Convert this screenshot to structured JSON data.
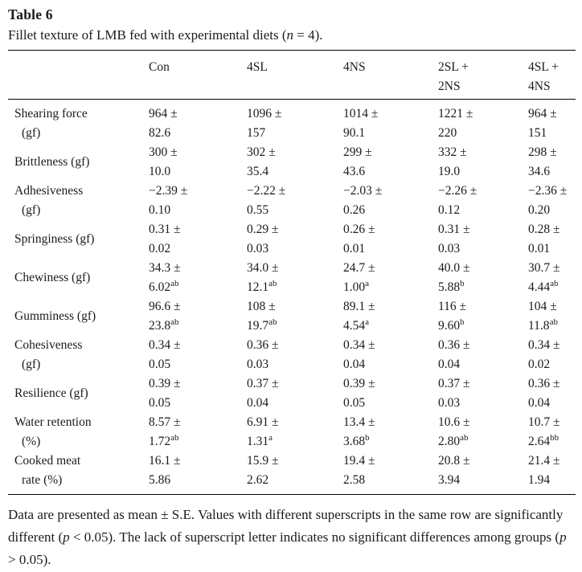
{
  "title": "Table 6",
  "caption": {
    "prefix": "Fillet texture of LMB fed with experimental diets (",
    "n": "n",
    "suffix": " = 4)."
  },
  "table": {
    "columns": [
      {
        "line1": "",
        "line2": ""
      },
      {
        "line1": "Con",
        "line2": ""
      },
      {
        "line1": "4SL",
        "line2": ""
      },
      {
        "line1": "4NS",
        "line2": ""
      },
      {
        "line1": "2SL +",
        "line2": "2NS"
      },
      {
        "line1": "4SL +",
        "line2": "4NS"
      }
    ],
    "rows": [
      {
        "label1": "Shearing force",
        "label2": "(gf)",
        "values": [
          {
            "mean": "964 ±",
            "se": "82.6",
            "sup": ""
          },
          {
            "mean": "1096 ±",
            "se": "157",
            "sup": ""
          },
          {
            "mean": "1014 ±",
            "se": "90.1",
            "sup": ""
          },
          {
            "mean": "1221 ±",
            "se": "220",
            "sup": ""
          },
          {
            "mean": "964 ±",
            "se": "151",
            "sup": ""
          }
        ]
      },
      {
        "label1": "Brittleness (gf)",
        "label2": "",
        "values": [
          {
            "mean": "300 ±",
            "se": "10.0",
            "sup": ""
          },
          {
            "mean": "302 ±",
            "se": "35.4",
            "sup": ""
          },
          {
            "mean": "299 ±",
            "se": "43.6",
            "sup": ""
          },
          {
            "mean": "332 ±",
            "se": "19.0",
            "sup": ""
          },
          {
            "mean": "298 ±",
            "se": "34.6",
            "sup": ""
          }
        ]
      },
      {
        "label1": "Adhesiveness",
        "label2": "(gf)",
        "values": [
          {
            "mean": "−2.39 ±",
            "se": "0.10",
            "sup": ""
          },
          {
            "mean": "−2.22 ±",
            "se": "0.55",
            "sup": ""
          },
          {
            "mean": "−2.03 ±",
            "se": "0.26",
            "sup": ""
          },
          {
            "mean": "−2.26 ±",
            "se": "0.12",
            "sup": ""
          },
          {
            "mean": "−2.36 ±",
            "se": "0.20",
            "sup": ""
          }
        ]
      },
      {
        "label1": "Springiness (gf)",
        "label2": "",
        "values": [
          {
            "mean": "0.31 ±",
            "se": "0.02",
            "sup": ""
          },
          {
            "mean": "0.29 ±",
            "se": "0.03",
            "sup": ""
          },
          {
            "mean": "0.26 ±",
            "se": "0.01",
            "sup": ""
          },
          {
            "mean": "0.31 ±",
            "se": "0.03",
            "sup": ""
          },
          {
            "mean": "0.28 ±",
            "se": "0.01",
            "sup": ""
          }
        ]
      },
      {
        "label1": "Chewiness (gf)",
        "label2": "",
        "values": [
          {
            "mean": "34.3 ±",
            "se": "6.02",
            "sup": "ab"
          },
          {
            "mean": "34.0 ±",
            "se": "12.1",
            "sup": "ab"
          },
          {
            "mean": "24.7 ±",
            "se": "1.00",
            "sup": "a"
          },
          {
            "mean": "40.0 ±",
            "se": "5.88",
            "sup": "b"
          },
          {
            "mean": "30.7 ±",
            "se": "4.44",
            "sup": "ab"
          }
        ]
      },
      {
        "label1": "Gumminess (gf)",
        "label2": "",
        "values": [
          {
            "mean": "96.6 ±",
            "se": "23.8",
            "sup": "ab"
          },
          {
            "mean": "108 ±",
            "se": "19.7",
            "sup": "ab"
          },
          {
            "mean": "89.1 ±",
            "se": "4.54",
            "sup": "a"
          },
          {
            "mean": "116 ±",
            "se": "9.60",
            "sup": "b"
          },
          {
            "mean": "104 ±",
            "se": "11.8",
            "sup": "ab"
          }
        ]
      },
      {
        "label1": "Cohesiveness",
        "label2": "(gf)",
        "values": [
          {
            "mean": "0.34 ±",
            "se": "0.05",
            "sup": ""
          },
          {
            "mean": "0.36 ±",
            "se": "0.03",
            "sup": ""
          },
          {
            "mean": "0.34 ±",
            "se": "0.04",
            "sup": ""
          },
          {
            "mean": "0.36 ±",
            "se": "0.04",
            "sup": ""
          },
          {
            "mean": "0.34 ±",
            "se": "0.02",
            "sup": ""
          }
        ]
      },
      {
        "label1": "Resilience (gf)",
        "label2": "",
        "values": [
          {
            "mean": "0.39 ±",
            "se": "0.05",
            "sup": ""
          },
          {
            "mean": "0.37 ±",
            "se": "0.04",
            "sup": ""
          },
          {
            "mean": "0.39 ±",
            "se": "0.05",
            "sup": ""
          },
          {
            "mean": "0.37 ±",
            "se": "0.03",
            "sup": ""
          },
          {
            "mean": "0.36 ±",
            "se": "0.04",
            "sup": ""
          }
        ]
      },
      {
        "label1": "Water retention",
        "label2": "(%)",
        "values": [
          {
            "mean": "8.57 ±",
            "se": "1.72",
            "sup": "ab"
          },
          {
            "mean": "6.91 ±",
            "se": "1.31",
            "sup": "a"
          },
          {
            "mean": "13.4 ±",
            "se": "3.68",
            "sup": "b"
          },
          {
            "mean": "10.6 ±",
            "se": "2.80",
            "sup": "ab"
          },
          {
            "mean": "10.7 ±",
            "se": "2.64",
            "sup": "bb"
          }
        ]
      },
      {
        "label1": "Cooked meat",
        "label2": "rate (%)",
        "values": [
          {
            "mean": "16.1 ±",
            "se": "5.86",
            "sup": ""
          },
          {
            "mean": "15.9 ±",
            "se": "2.62",
            "sup": ""
          },
          {
            "mean": "19.4 ±",
            "se": "2.58",
            "sup": ""
          },
          {
            "mean": "20.8 ±",
            "se": "3.94",
            "sup": ""
          },
          {
            "mean": "21.4 ±",
            "se": "1.94",
            "sup": ""
          }
        ]
      }
    ]
  },
  "footnote": {
    "s1": "Data are presented as mean ± S.E. Values with different superscripts in the same row are significantly different (",
    "p1": "p",
    "s2": " < 0.05). The lack of superscript letter indicates no significant differences among groups (",
    "p2": "p",
    "s3": " > 0.05)."
  }
}
